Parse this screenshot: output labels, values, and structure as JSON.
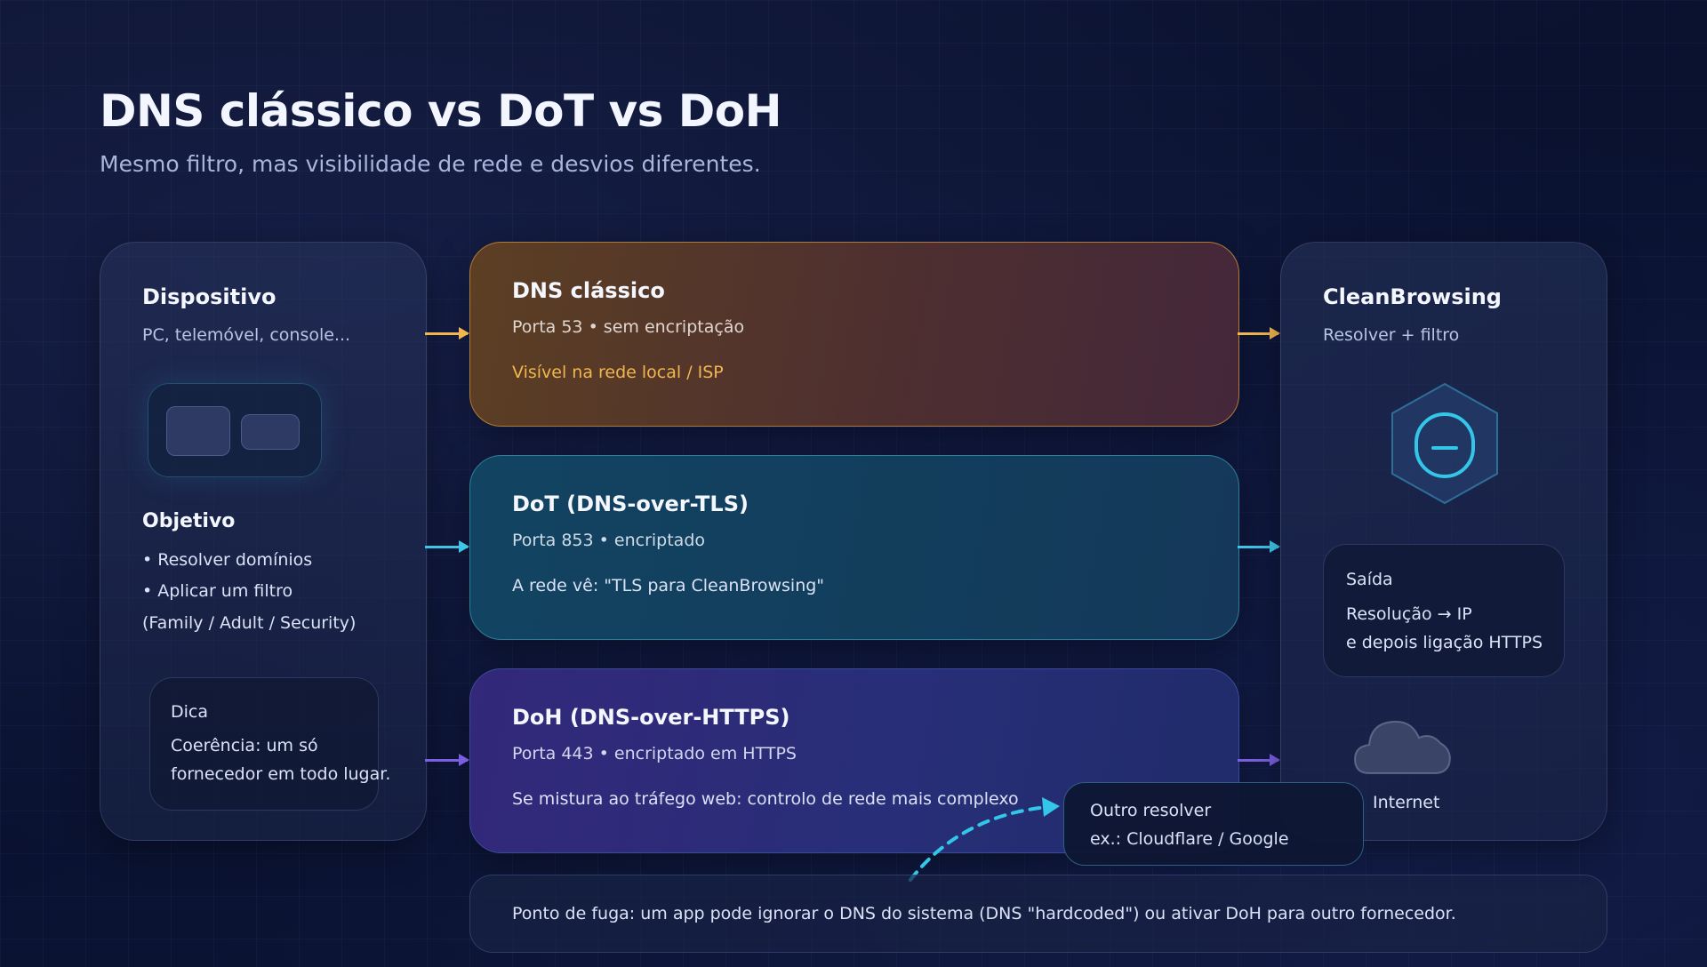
{
  "header": {
    "title": "DNS clássico vs DoT vs DoH",
    "subtitle": "Mesmo filtro, mas visibilidade de rede e desvios diferentes."
  },
  "device": {
    "title": "Dispositivo",
    "subtitle": "PC, telemóvel, console...",
    "goal_title": "Objetivo",
    "goal_items": [
      "• Resolver domínios",
      "• Aplicar um filtro",
      "(Family / Adult / Security)"
    ],
    "tip_title": "Dica",
    "tip_lines": [
      "Coerência: um só",
      "fornecedor em todo lugar."
    ]
  },
  "lanes": [
    {
      "title": "DNS clássico",
      "port": "Porta 53 • sem encriptação",
      "note": "Visível na rede local / ISP",
      "color": "#f2b650"
    },
    {
      "title": "DoT (DNS-over-TLS)",
      "port": "Porta 853 • encriptado",
      "note": "A rede vê: \"TLS para CleanBrowsing\"",
      "color": "#3fc6e6"
    },
    {
      "title": "DoH (DNS-over-HTTPS)",
      "port": "Porta 443 • encriptado em HTTPS",
      "note": "Se mistura ao tráfego web: controlo de rede mais complexo",
      "color": "#7b5fe0"
    }
  ],
  "resolver": {
    "title": "CleanBrowsing",
    "subtitle": "Resolver + filtro",
    "icon": "shield-icon",
    "output_title": "Saída",
    "output_lines": [
      "Resolução → IP",
      "e depois ligação HTTPS"
    ],
    "internet_label": "Internet"
  },
  "other_resolver": {
    "lines": [
      "Outro resolver",
      "ex.: Cloudflare / Google"
    ]
  },
  "footer": {
    "text": "Ponto de fuga: um app pode ignorar o DNS do sistema (DNS \"hardcoded\") ou ativar DoH para outro fornecedor."
  }
}
